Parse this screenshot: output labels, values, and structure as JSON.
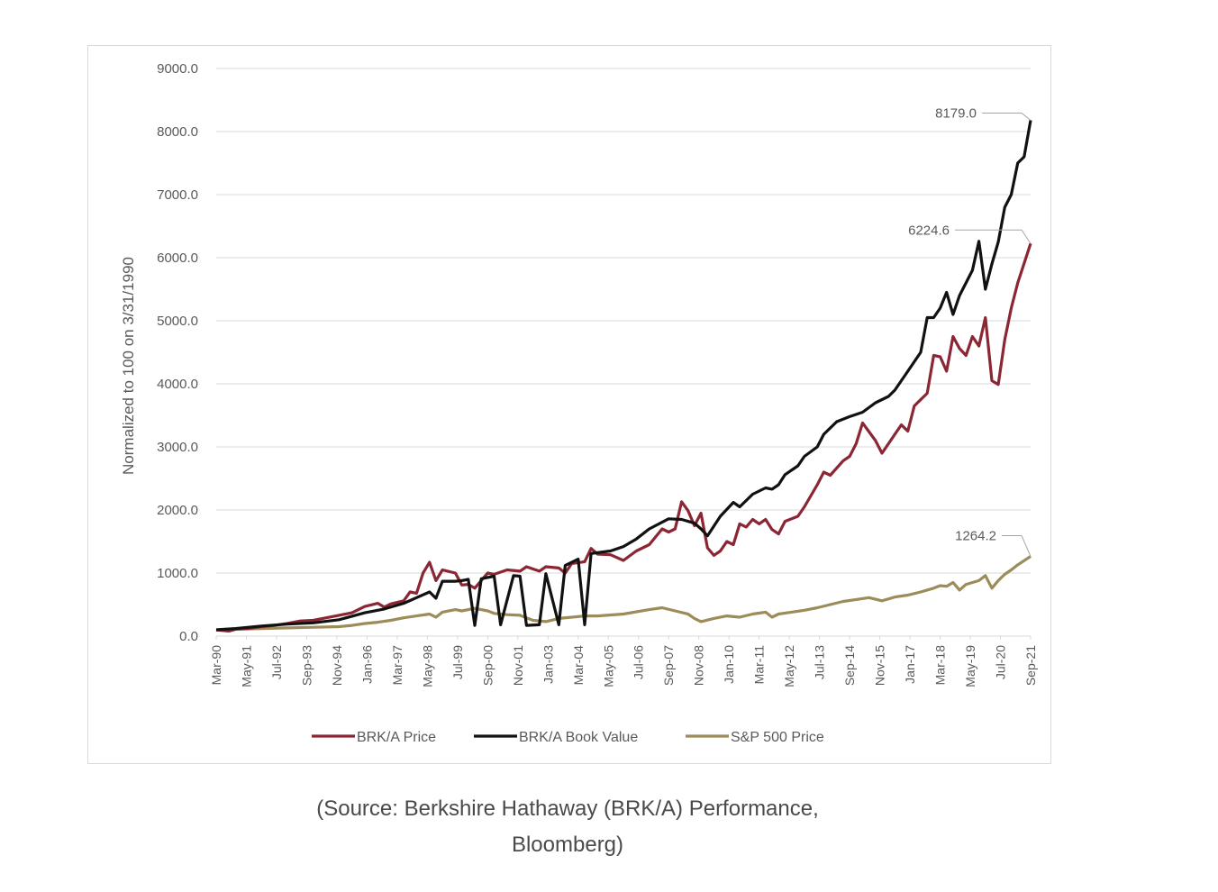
{
  "caption": {
    "line1": "(Source: Berkshire Hathaway (BRK/A) Performance,",
    "line2": "Bloomberg)"
  },
  "colors": {
    "brk_price": "#8b2634",
    "brk_book": "#111111",
    "sp500": "#9c8c5a",
    "grid": "#d9d9d9",
    "text": "#595959"
  },
  "chart_data": {
    "type": "line",
    "title": "",
    "xlabel": "",
    "ylabel": "Normalized to 100 on 3/31/1990",
    "ylim": [
      0,
      9000
    ],
    "yticks": [
      "0.0",
      "1000.0",
      "2000.0",
      "3000.0",
      "4000.0",
      "5000.0",
      "6000.0",
      "7000.0",
      "8000.0",
      "9000.0"
    ],
    "xticks": [
      "Mar-90",
      "May-91",
      "Jul-92",
      "Sep-93",
      "Nov-94",
      "Jan-96",
      "Mar-97",
      "May-98",
      "Jul-99",
      "Sep-00",
      "Nov-01",
      "Jan-03",
      "Mar-04",
      "May-05",
      "Jul-06",
      "Sep-07",
      "Nov-08",
      "Jan-10",
      "Mar-11",
      "May-12",
      "Jul-13",
      "Sep-14",
      "Nov-15",
      "Jan-17",
      "Mar-18",
      "May-19",
      "Jul-20",
      "Sep-21"
    ],
    "grid": true,
    "legend_position": "bottom",
    "series": [
      {
        "name": "BRK/A Price",
        "color": "#8b2634",
        "points": [
          [
            1990.25,
            100
          ],
          [
            1990.75,
            80
          ],
          [
            1991.0,
            110
          ],
          [
            1991.5,
            120
          ],
          [
            1992.0,
            150
          ],
          [
            1992.5,
            170
          ],
          [
            1993.0,
            200
          ],
          [
            1993.5,
            240
          ],
          [
            1994.0,
            250
          ],
          [
            1994.5,
            290
          ],
          [
            1995.0,
            330
          ],
          [
            1995.5,
            370
          ],
          [
            1996.0,
            470
          ],
          [
            1996.5,
            520
          ],
          [
            1996.75,
            460
          ],
          [
            1997.0,
            510
          ],
          [
            1997.5,
            560
          ],
          [
            1997.75,
            700
          ],
          [
            1998.0,
            680
          ],
          [
            1998.25,
            1000
          ],
          [
            1998.5,
            1170
          ],
          [
            1998.75,
            880
          ],
          [
            1999.0,
            1050
          ],
          [
            1999.5,
            1000
          ],
          [
            1999.75,
            810
          ],
          [
            2000.0,
            820
          ],
          [
            2000.25,
            760
          ],
          [
            2000.75,
            1000
          ],
          [
            2001.0,
            980
          ],
          [
            2001.5,
            1050
          ],
          [
            2002.0,
            1030
          ],
          [
            2002.25,
            1100
          ],
          [
            2002.75,
            1030
          ],
          [
            2003.0,
            1100
          ],
          [
            2003.5,
            1080
          ],
          [
            2003.75,
            1000
          ],
          [
            2004.0,
            1150
          ],
          [
            2004.5,
            1180
          ],
          [
            2004.75,
            1390
          ],
          [
            2005.0,
            1300
          ],
          [
            2005.5,
            1290
          ],
          [
            2006.0,
            1200
          ],
          [
            2006.5,
            1350
          ],
          [
            2007.0,
            1450
          ],
          [
            2007.5,
            1700
          ],
          [
            2007.75,
            1650
          ],
          [
            2008.0,
            1700
          ],
          [
            2008.25,
            2130
          ],
          [
            2008.5,
            1990
          ],
          [
            2008.75,
            1750
          ],
          [
            2009.0,
            1950
          ],
          [
            2009.25,
            1400
          ],
          [
            2009.5,
            1280
          ],
          [
            2009.75,
            1350
          ],
          [
            2010.0,
            1500
          ],
          [
            2010.25,
            1450
          ],
          [
            2010.5,
            1780
          ],
          [
            2010.75,
            1730
          ],
          [
            2011.0,
            1850
          ],
          [
            2011.25,
            1780
          ],
          [
            2011.5,
            1850
          ],
          [
            2011.75,
            1690
          ],
          [
            2012.0,
            1620
          ],
          [
            2012.25,
            1820
          ],
          [
            2012.75,
            1900
          ],
          [
            2013.0,
            2050
          ],
          [
            2013.5,
            2400
          ],
          [
            2013.75,
            2600
          ],
          [
            2014.0,
            2550
          ],
          [
            2014.5,
            2780
          ],
          [
            2014.75,
            2850
          ],
          [
            2015.0,
            3050
          ],
          [
            2015.25,
            3380
          ],
          [
            2015.75,
            3100
          ],
          [
            2016.0,
            2900
          ],
          [
            2016.25,
            3050
          ],
          [
            2016.5,
            3200
          ],
          [
            2016.75,
            3350
          ],
          [
            2017.0,
            3250
          ],
          [
            2017.25,
            3650
          ],
          [
            2017.75,
            3850
          ],
          [
            2018.0,
            4450
          ],
          [
            2018.25,
            4430
          ],
          [
            2018.5,
            4200
          ],
          [
            2018.75,
            4750
          ],
          [
            2019.0,
            4560
          ],
          [
            2019.25,
            4450
          ],
          [
            2019.5,
            4750
          ],
          [
            2019.75,
            4600
          ],
          [
            2020.0,
            5050
          ],
          [
            2020.25,
            4050
          ],
          [
            2020.5,
            3990
          ],
          [
            2020.75,
            4700
          ],
          [
            2021.0,
            5200
          ],
          [
            2021.25,
            5600
          ],
          [
            2021.75,
            6224.6
          ]
        ],
        "end_label": "6224.6"
      },
      {
        "name": "BRK/A Book Value",
        "color": "#111111",
        "points": [
          [
            1990.25,
            100
          ],
          [
            1991.0,
            120
          ],
          [
            1992.0,
            160
          ],
          [
            1993.0,
            190
          ],
          [
            1994.0,
            210
          ],
          [
            1995.0,
            260
          ],
          [
            1996.0,
            370
          ],
          [
            1996.75,
            430
          ],
          [
            1997.5,
            520
          ],
          [
            1998.0,
            610
          ],
          [
            1998.5,
            700
          ],
          [
            1998.75,
            600
          ],
          [
            1999.0,
            870
          ],
          [
            1999.5,
            870
          ],
          [
            1999.75,
            880
          ],
          [
            2000.0,
            900
          ],
          [
            2000.25,
            170
          ],
          [
            2000.5,
            910
          ],
          [
            2001.0,
            950
          ],
          [
            2001.25,
            180
          ],
          [
            2001.75,
            960
          ],
          [
            2002.0,
            950
          ],
          [
            2002.25,
            170
          ],
          [
            2002.75,
            180
          ],
          [
            2003.0,
            990
          ],
          [
            2003.5,
            180
          ],
          [
            2003.75,
            1120
          ],
          [
            2004.25,
            1220
          ],
          [
            2004.5,
            180
          ],
          [
            2004.75,
            1310
          ],
          [
            2005.5,
            1350
          ],
          [
            2006.0,
            1420
          ],
          [
            2006.5,
            1540
          ],
          [
            2007.0,
            1700
          ],
          [
            2007.75,
            1860
          ],
          [
            2008.25,
            1850
          ],
          [
            2008.75,
            1790
          ],
          [
            2009.0,
            1700
          ],
          [
            2009.25,
            1590
          ],
          [
            2009.75,
            1900
          ],
          [
            2010.25,
            2120
          ],
          [
            2010.5,
            2050
          ],
          [
            2011.0,
            2250
          ],
          [
            2011.5,
            2350
          ],
          [
            2011.75,
            2330
          ],
          [
            2012.0,
            2400
          ],
          [
            2012.25,
            2560
          ],
          [
            2012.75,
            2700
          ],
          [
            2013.0,
            2850
          ],
          [
            2013.5,
            3000
          ],
          [
            2013.75,
            3200
          ],
          [
            2014.25,
            3400
          ],
          [
            2014.75,
            3480
          ],
          [
            2015.25,
            3550
          ],
          [
            2015.75,
            3700
          ],
          [
            2016.25,
            3800
          ],
          [
            2016.5,
            3900
          ],
          [
            2017.0,
            4200
          ],
          [
            2017.5,
            4500
          ],
          [
            2017.75,
            5050
          ],
          [
            2018.0,
            5050
          ],
          [
            2018.25,
            5200
          ],
          [
            2018.5,
            5450
          ],
          [
            2018.75,
            5100
          ],
          [
            2019.0,
            5400
          ],
          [
            2019.5,
            5800
          ],
          [
            2019.75,
            6260
          ],
          [
            2020.0,
            5500
          ],
          [
            2020.25,
            5900
          ],
          [
            2020.5,
            6250
          ],
          [
            2020.75,
            6800
          ],
          [
            2021.0,
            7000
          ],
          [
            2021.25,
            7500
          ],
          [
            2021.5,
            7600
          ],
          [
            2021.75,
            8179.0
          ]
        ],
        "end_label": "8179.0"
      },
      {
        "name": "S&P 500 Price",
        "color": "#9c8c5a",
        "points": [
          [
            1990.25,
            100
          ],
          [
            1990.75,
            80
          ],
          [
            1991.0,
            110
          ],
          [
            1992.0,
            120
          ],
          [
            1993.0,
            130
          ],
          [
            1994.0,
            140
          ],
          [
            1995.0,
            150
          ],
          [
            1995.5,
            170
          ],
          [
            1996.0,
            200
          ],
          [
            1996.5,
            220
          ],
          [
            1997.0,
            250
          ],
          [
            1997.5,
            290
          ],
          [
            1998.0,
            320
          ],
          [
            1998.5,
            350
          ],
          [
            1998.75,
            300
          ],
          [
            1999.0,
            380
          ],
          [
            1999.5,
            420
          ],
          [
            1999.75,
            400
          ],
          [
            2000.25,
            440
          ],
          [
            2000.75,
            400
          ],
          [
            2001.0,
            360
          ],
          [
            2001.5,
            340
          ],
          [
            2002.0,
            330
          ],
          [
            2002.5,
            250
          ],
          [
            2003.0,
            230
          ],
          [
            2003.5,
            280
          ],
          [
            2004.0,
            300
          ],
          [
            2004.5,
            320
          ],
          [
            2005.0,
            320
          ],
          [
            2006.0,
            350
          ],
          [
            2007.0,
            420
          ],
          [
            2007.5,
            450
          ],
          [
            2008.0,
            400
          ],
          [
            2008.5,
            350
          ],
          [
            2008.75,
            280
          ],
          [
            2009.0,
            230
          ],
          [
            2009.5,
            280
          ],
          [
            2010.0,
            320
          ],
          [
            2010.5,
            300
          ],
          [
            2011.0,
            350
          ],
          [
            2011.5,
            380
          ],
          [
            2011.75,
            300
          ],
          [
            2012.0,
            350
          ],
          [
            2012.5,
            380
          ],
          [
            2013.0,
            410
          ],
          [
            2013.5,
            450
          ],
          [
            2014.0,
            500
          ],
          [
            2014.5,
            550
          ],
          [
            2015.0,
            580
          ],
          [
            2015.5,
            610
          ],
          [
            2016.0,
            560
          ],
          [
            2016.5,
            620
          ],
          [
            2017.0,
            650
          ],
          [
            2017.5,
            700
          ],
          [
            2018.0,
            760
          ],
          [
            2018.25,
            800
          ],
          [
            2018.5,
            790
          ],
          [
            2018.75,
            850
          ],
          [
            2019.0,
            730
          ],
          [
            2019.25,
            820
          ],
          [
            2019.75,
            880
          ],
          [
            2020.0,
            960
          ],
          [
            2020.25,
            760
          ],
          [
            2020.5,
            880
          ],
          [
            2020.75,
            980
          ],
          [
            2021.0,
            1050
          ],
          [
            2021.25,
            1130
          ],
          [
            2021.75,
            1264.2
          ]
        ],
        "end_label": "1264.2"
      }
    ]
  }
}
